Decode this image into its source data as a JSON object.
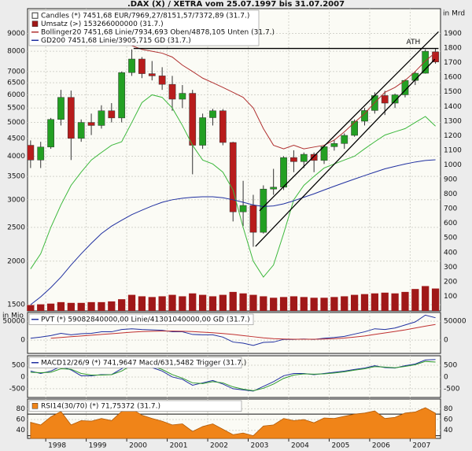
{
  "title": ".DAX (X) / XETRA vom 25.07.1997 bis 31.07.2007",
  "chart_data": [
    {
      "type": "candlestick",
      "x": [
        1997.625,
        1997.875,
        1998.125,
        1998.375,
        1998.625,
        1998.875,
        1999.125,
        1999.375,
        1999.625,
        1999.875,
        2000.125,
        2000.375,
        2000.625,
        2000.875,
        2001.125,
        2001.375,
        2001.625,
        2001.875,
        2002.125,
        2002.375,
        2002.625,
        2002.875,
        2003.125,
        2003.375,
        2003.625,
        2003.875,
        2004.125,
        2004.375,
        2004.625,
        2004.875,
        2005.125,
        2005.375,
        2005.625,
        2005.875,
        2006.125,
        2006.375,
        2006.625,
        2006.875,
        2007.125,
        2007.375,
        2007.625
      ],
      "xlim": [
        1997.55,
        2007.75
      ],
      "log_y": true,
      "ylim": [
        1440,
        10600
      ],
      "yticks": [
        1500,
        2000,
        2500,
        3000,
        3500,
        4000,
        4500,
        5000,
        5500,
        6000,
        6500,
        7000,
        8000,
        9000
      ],
      "y2label": "in Mrd",
      "y2lim": [
        0,
        2070
      ],
      "y2ticks": [
        100,
        200,
        300,
        400,
        500,
        600,
        700,
        800,
        900,
        1000,
        1100,
        1200,
        1300,
        1400,
        1500,
        1600,
        1700,
        1800,
        1900
      ],
      "grid": true,
      "series": [
        {
          "name": "Candles (*) 7451,68 EUR/7969,27/8151,57/7372,89 (31.7.)",
          "type": "candlestick",
          "up_color": "#23a023",
          "down_color": "#b81c1c",
          "open": [
            4300,
            3900,
            4250,
            5100,
            5900,
            4500,
            5000,
            4900,
            5400,
            5150,
            6950,
            7600,
            6900,
            6800,
            6430,
            5830,
            6060,
            4300,
            5160,
            5400,
            4380,
            2770,
            2890,
            2420,
            3220,
            3260,
            3965,
            3860,
            4050,
            3890,
            4260,
            4350,
            4590,
            5040,
            5410,
            5970,
            5680,
            6000,
            6600,
            6920,
            7969.27
          ],
          "high": [
            4440,
            4400,
            5150,
            6200,
            6170,
            5100,
            5300,
            5600,
            5680,
            7000,
            8100,
            7700,
            7500,
            7200,
            6800,
            6400,
            6200,
            5300,
            5470,
            5460,
            4400,
            3400,
            3100,
            3300,
            3680,
            4000,
            4160,
            4100,
            4100,
            4300,
            4450,
            4650,
            5100,
            5500,
            6100,
            6160,
            6050,
            6650,
            7000,
            8100,
            8151.57
          ],
          "low": [
            3700,
            3700,
            4200,
            4900,
            3900,
            4400,
            4600,
            4800,
            5000,
            5000,
            6800,
            6700,
            6600,
            6200,
            5400,
            5500,
            3550,
            4200,
            4900,
            4300,
            2600,
            2520,
            2200,
            2400,
            3100,
            3200,
            3600,
            3700,
            3600,
            3800,
            4150,
            4200,
            4550,
            4900,
            5300,
            5250,
            5500,
            5900,
            6400,
            6900,
            7372.89
          ],
          "close": [
            3900,
            4250,
            5100,
            5900,
            4500,
            5000,
            4900,
            5400,
            5150,
            6950,
            7600,
            6900,
            6800,
            6430,
            5830,
            6060,
            4300,
            5160,
            5400,
            4380,
            2770,
            2890,
            2420,
            3220,
            3260,
            3965,
            3860,
            4050,
            3890,
            4260,
            4350,
            4590,
            5040,
            5410,
            5970,
            5680,
            6000,
            6600,
            6920,
            8000,
            7451.68
          ]
        },
        {
          "name": "Umsatz (>) 153266000000 (31.7.)",
          "type": "bar",
          "axis": "y2",
          "color": "#a01818",
          "values": [
            40,
            45,
            50,
            60,
            55,
            55,
            60,
            60,
            65,
            80,
            110,
            100,
            95,
            100,
            110,
            100,
            120,
            110,
            100,
            110,
            130,
            120,
            110,
            100,
            90,
            95,
            100,
            95,
            90,
            90,
            95,
            100,
            110,
            115,
            120,
            125,
            120,
            130,
            150,
            170,
            153.266
          ]
        },
        {
          "name": "Bollinger20 7451,68 Linie/7934,693 Oben/4878,105 Unten (31.7.)",
          "type": "band",
          "upper_color": "#b03030",
          "lower_color": "#3cb83c",
          "upper": [
            null,
            null,
            null,
            null,
            null,
            null,
            null,
            null,
            null,
            null,
            8300,
            8100,
            8000,
            7900,
            7700,
            7300,
            7000,
            6700,
            6500,
            6300,
            6100,
            5900,
            5500,
            4800,
            4300,
            4200,
            4300,
            4200,
            4250,
            4300,
            4450,
            4700,
            5000,
            5300,
            5700,
            6100,
            6300,
            6600,
            7000,
            7500,
            7934.693
          ],
          "lower": [
            1900,
            2100,
            2500,
            2900,
            3300,
            3600,
            3900,
            4100,
            4300,
            4400,
            5000,
            5700,
            6000,
            5900,
            5500,
            4900,
            4300,
            3900,
            3800,
            3600,
            3200,
            2500,
            2000,
            1800,
            1950,
            2400,
            3000,
            3300,
            3500,
            3700,
            3800,
            3900,
            4000,
            4200,
            4400,
            4600,
            4700,
            4800,
            5000,
            5200,
            4878.105
          ]
        },
        {
          "name": "GD200 7451,68 Linie/3905,715 GD (31.7.)",
          "type": "line",
          "color": "#2030a0",
          "values": [
            1500,
            1580,
            1680,
            1800,
            1950,
            2100,
            2250,
            2400,
            2520,
            2620,
            2720,
            2800,
            2880,
            2950,
            3000,
            3030,
            3050,
            3060,
            3060,
            3040,
            3000,
            2950,
            2900,
            2870,
            2880,
            2920,
            2980,
            3050,
            3120,
            3200,
            3280,
            3360,
            3440,
            3520,
            3600,
            3680,
            3740,
            3800,
            3850,
            3890,
            3905.715
          ]
        }
      ],
      "trend_lines": {
        "color": "#000000",
        "lines": [
          {
            "x": [
              2000.17,
              2007.7
            ],
            "y": [
              8150,
              8150
            ]
          },
          {
            "x": [
              2003.28,
              2007.7
            ],
            "y": [
              2790,
              9100
            ]
          },
          {
            "x": [
              2003.18,
              2007.61
            ],
            "y": [
              2205,
              7590
            ]
          }
        ]
      },
      "annotation": "ATH"
    },
    {
      "type": "line",
      "x": [
        1997.625,
        1997.875,
        1998.125,
        1998.375,
        1998.625,
        1998.875,
        1999.125,
        1999.375,
        1999.625,
        1999.875,
        2000.125,
        2000.375,
        2000.625,
        2000.875,
        2001.125,
        2001.375,
        2001.625,
        2001.875,
        2002.125,
        2002.375,
        2002.625,
        2002.875,
        2003.125,
        2003.375,
        2003.625,
        2003.875,
        2004.125,
        2004.375,
        2004.625,
        2004.875,
        2005.125,
        2005.375,
        2005.625,
        2005.875,
        2006.125,
        2006.375,
        2006.625,
        2006.875,
        2007.125,
        2007.375,
        2007.625
      ],
      "xlim": [
        1997.55,
        2007.75
      ],
      "ylabel": "in Mio",
      "ylim": [
        -35000,
        73000
      ],
      "yticks": [
        0,
        50000
      ],
      "grid": true,
      "series": [
        {
          "name": "PVT (*) 59082840000,00 Linie/41301040000,00 GD (31.7.)",
          "type": "line",
          "color": "#2030a0",
          "values": [
            5000,
            8000,
            12000,
            18000,
            14000,
            17000,
            18000,
            22000,
            22000,
            28000,
            30000,
            28000,
            27000,
            26000,
            22000,
            22000,
            15000,
            14000,
            14000,
            8000,
            -5000,
            -8000,
            -14000,
            -6000,
            -5000,
            2000,
            2000,
            3000,
            2000,
            5000,
            7000,
            10000,
            16000,
            22000,
            30000,
            28000,
            32000,
            40000,
            48000,
            66000,
            59082.84
          ]
        },
        {
          "type": "line",
          "color": "#c03030",
          "values": [
            null,
            null,
            5000,
            7000,
            9000,
            11000,
            13000,
            15000,
            17000,
            19000,
            21000,
            22500,
            23500,
            24000,
            24000,
            23500,
            22500,
            21000,
            19500,
            17500,
            15000,
            12000,
            9000,
            6000,
            4000,
            3000,
            2500,
            2500,
            2500,
            3000,
            4000,
            5500,
            8000,
            11000,
            15000,
            19000,
            23000,
            27000,
            32000,
            37000,
            41301.04
          ]
        }
      ]
    },
    {
      "type": "line",
      "x": [
        1997.625,
        1997.875,
        1998.125,
        1998.375,
        1998.625,
        1998.875,
        1999.125,
        1999.375,
        1999.625,
        1999.875,
        2000.125,
        2000.375,
        2000.625,
        2000.875,
        2001.125,
        2001.375,
        2001.625,
        2001.875,
        2002.125,
        2002.375,
        2002.625,
        2002.875,
        2003.125,
        2003.375,
        2003.625,
        2003.875,
        2004.125,
        2004.375,
        2004.625,
        2004.875,
        2005.125,
        2005.375,
        2005.625,
        2005.875,
        2006.125,
        2006.375,
        2006.625,
        2006.875,
        2007.125,
        2007.375,
        2007.625
      ],
      "xlim": [
        1997.55,
        2007.75
      ],
      "ylim": [
        -870,
        900
      ],
      "yticks": [
        -500,
        0,
        500
      ],
      "grid": true,
      "series": [
        {
          "name": "MACD12/26/9 (*) 741,9647 Macd/631,5482 Trigger (31.7.)",
          "type": "line",
          "color": "#2030a0",
          "values": [
            250,
            150,
            250,
            450,
            300,
            50,
            50,
            100,
            100,
            350,
            650,
            550,
            400,
            250,
            0,
            -100,
            -350,
            -250,
            -150,
            -300,
            -500,
            -550,
            -600,
            -400,
            -200,
            50,
            150,
            150,
            100,
            150,
            200,
            250,
            320,
            380,
            480,
            400,
            380,
            480,
            550,
            720,
            741.9647
          ]
        },
        {
          "type": "line",
          "color": "#2e9a2e",
          "values": [
            200,
            180,
            200,
            350,
            330,
            150,
            80,
            80,
            100,
            250,
            500,
            580,
            470,
            320,
            100,
            -50,
            -250,
            -280,
            -200,
            -250,
            -420,
            -520,
            -580,
            -480,
            -300,
            -60,
            80,
            130,
            120,
            130,
            170,
            220,
            290,
            350,
            440,
            420,
            390,
            450,
            520,
            660,
            631.5482
          ]
        }
      ]
    },
    {
      "type": "area",
      "x": [
        1997.625,
        1997.875,
        1998.125,
        1998.375,
        1998.625,
        1998.875,
        1999.125,
        1999.375,
        1999.625,
        1999.875,
        2000.125,
        2000.375,
        2000.625,
        2000.875,
        2001.125,
        2001.375,
        2001.625,
        2001.875,
        2002.125,
        2002.375,
        2002.625,
        2002.875,
        2003.125,
        2003.375,
        2003.625,
        2003.875,
        2004.125,
        2004.375,
        2004.625,
        2004.875,
        2005.125,
        2005.375,
        2005.625,
        2005.875,
        2006.125,
        2006.375,
        2006.625,
        2006.875,
        2007.125,
        2007.375,
        2007.625
      ],
      "xlim": [
        1997.55,
        2007.75
      ],
      "xticks": [
        1998,
        1999,
        2000,
        2001,
        2002,
        2003,
        2004,
        2005,
        2006,
        2007
      ],
      "ylim": [
        25,
        98
      ],
      "yticks": [
        40,
        60,
        80
      ],
      "levels": [
        30,
        70
      ],
      "grid": true,
      "series": [
        {
          "name": "RSI14(30/70) (*) 71,75372 (31.7.)",
          "type": "area",
          "color": "#f08418",
          "values": [
            55,
            50,
            65,
            75,
            50,
            58,
            57,
            62,
            58,
            75,
            80,
            68,
            62,
            57,
            50,
            52,
            38,
            47,
            52,
            42,
            32,
            35,
            30,
            48,
            50,
            62,
            58,
            60,
            54,
            63,
            62,
            66,
            70,
            72,
            76,
            62,
            64,
            72,
            74,
            82,
            71.75372
          ]
        }
      ]
    }
  ]
}
